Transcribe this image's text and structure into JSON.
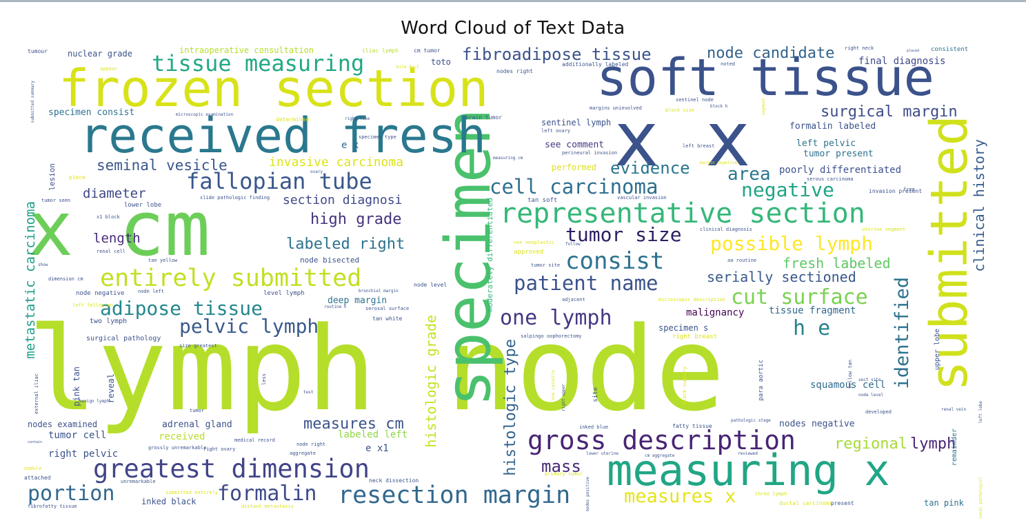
{
  "chart_data": {
    "type": "wordcloud",
    "title": "Word Cloud of Text Data",
    "background": "#ffffff",
    "colormap": "viridis",
    "words": [
      {
        "text": "lymph node",
        "weight": 1.0,
        "color": "#b5de2b"
      },
      {
        "text": "x cm",
        "weight": 0.62,
        "color": "#6cce59"
      },
      {
        "text": "specimen",
        "weight": 0.5,
        "color": "#4ac16d"
      },
      {
        "text": "frozen section",
        "weight": 0.45,
        "color": "#d8e219"
      },
      {
        "text": "soft tissue",
        "weight": 0.45,
        "color": "#3b528b"
      },
      {
        "text": "x x",
        "weight": 0.5,
        "color": "#3b528b"
      },
      {
        "text": "submitted",
        "weight": 0.42,
        "color": "#d0e11c"
      },
      {
        "text": "received fresh",
        "weight": 0.4,
        "color": "#2a788e"
      },
      {
        "text": "measuring x",
        "weight": 0.38,
        "color": "#21a685"
      },
      {
        "text": "representative section",
        "weight": 0.24,
        "color": "#35b779"
      },
      {
        "text": "gross description",
        "weight": 0.23,
        "color": "#482475"
      },
      {
        "text": "greatest dimension",
        "weight": 0.22,
        "color": "#414487"
      },
      {
        "text": "resection margin",
        "weight": 0.21,
        "color": "#31688e"
      },
      {
        "text": "entirely submitted",
        "weight": 0.21,
        "color": "#c2df23"
      },
      {
        "text": "consist",
        "weight": 0.2,
        "color": "#2c728e"
      },
      {
        "text": "fallopian tube",
        "weight": 0.19,
        "color": "#39568c"
      },
      {
        "text": "tissue measuring",
        "weight": 0.19,
        "color": "#22a884"
      },
      {
        "text": "one lymph",
        "weight": 0.18,
        "color": "#443a83"
      },
      {
        "text": "cell carcinoma",
        "weight": 0.17,
        "color": "#2e6f8e"
      },
      {
        "text": "formalin",
        "weight": 0.17,
        "color": "#3e4a89"
      },
      {
        "text": "portion",
        "weight": 0.17,
        "color": "#31688e"
      },
      {
        "text": "cut surface",
        "weight": 0.17,
        "color": "#7ad151"
      },
      {
        "text": "patient name",
        "weight": 0.17,
        "color": "#3b528b"
      },
      {
        "text": "tumor size",
        "weight": 0.16,
        "color": "#2d1e63"
      },
      {
        "text": "adipose tissue",
        "weight": 0.16,
        "color": "#24878e"
      },
      {
        "text": "pelvic lymph",
        "weight": 0.16,
        "color": "#38598c"
      },
      {
        "text": "possible lymph",
        "weight": 0.16,
        "color": "#fde725"
      },
      {
        "text": "fibroadipose tissue",
        "weight": 0.15,
        "color": "#3b528b"
      },
      {
        "text": "negative",
        "weight": 0.16,
        "color": "#20a386"
      },
      {
        "text": "area",
        "weight": 0.16,
        "color": "#2a788e"
      },
      {
        "text": "identified",
        "weight": 0.16,
        "color": "#2c728e"
      },
      {
        "text": "h e",
        "weight": 0.16,
        "color": "#26828e"
      },
      {
        "text": "measures x",
        "weight": 0.15,
        "color": "#e5e419"
      },
      {
        "text": "evidence",
        "weight": 0.14,
        "color": "#2b748e"
      },
      {
        "text": "node candidate",
        "weight": 0.13,
        "color": "#33638d"
      },
      {
        "text": "surgical margin",
        "weight": 0.13,
        "color": "#3e4c8a"
      },
      {
        "text": "histologic type",
        "weight": 0.13,
        "color": "#33638d"
      },
      {
        "text": "histologic grade",
        "weight": 0.12,
        "color": "#c8e020"
      },
      {
        "text": "seminal vesicle",
        "weight": 0.12,
        "color": "#39558c"
      },
      {
        "text": "high grade",
        "weight": 0.12,
        "color": "#46327e"
      },
      {
        "text": "labeled right",
        "weight": 0.12,
        "color": "#2c728e"
      },
      {
        "text": "serially sectioned",
        "weight": 0.12,
        "color": "#38588c"
      },
      {
        "text": "fresh labeled",
        "weight": 0.12,
        "color": "#5ec962"
      },
      {
        "text": "clinical history",
        "weight": 0.12,
        "color": "#365d8d"
      },
      {
        "text": "metastatic carcinoma",
        "weight": 0.12,
        "color": "#1fa088"
      },
      {
        "text": "measures cm",
        "weight": 0.11,
        "color": "#3b528b"
      },
      {
        "text": "mass",
        "weight": 0.11,
        "color": "#482878"
      },
      {
        "text": "regional",
        "weight": 0.11,
        "color": "#a5db36"
      },
      {
        "text": "lymph",
        "weight": 0.11,
        "color": "#482475"
      },
      {
        "text": "invasive carcinoma",
        "weight": 0.1,
        "color": "#dde318"
      },
      {
        "text": "section diagnosi",
        "weight": 0.1,
        "color": "#3e4989"
      },
      {
        "text": "diameter",
        "weight": 0.1,
        "color": "#3f4788"
      },
      {
        "text": "length",
        "weight": 0.1,
        "color": "#472c7a"
      },
      {
        "text": "malignancy",
        "weight": 0.08,
        "color": "#440154"
      },
      {
        "text": "tissue fragment",
        "weight": 0.08,
        "color": "#31688e"
      },
      {
        "text": "squamous cell",
        "weight": 0.08,
        "color": "#2f6c8e"
      },
      {
        "text": "poorly differentiated",
        "weight": 0.08,
        "color": "#3b528b"
      },
      {
        "text": "final diagnosis",
        "weight": 0.08,
        "color": "#3f4788"
      },
      {
        "text": "nuclear grade",
        "weight": 0.07,
        "color": "#3b528b"
      },
      {
        "text": "tumor cell",
        "weight": 0.07,
        "color": "#3b528b"
      },
      {
        "text": "right pelvic",
        "weight": 0.07,
        "color": "#3b528b"
      },
      {
        "text": "nodes examined",
        "weight": 0.07,
        "color": "#3b528b"
      },
      {
        "text": "adrenal gland",
        "weight": 0.07,
        "color": "#3b528b"
      },
      {
        "text": "deep margin",
        "weight": 0.07,
        "color": "#2c728e"
      },
      {
        "text": "left pelvic",
        "weight": 0.07,
        "color": "#2c728e"
      },
      {
        "text": "tumor present",
        "weight": 0.07,
        "color": "#2c728e"
      },
      {
        "text": "see comment",
        "weight": 0.07,
        "color": "#443a83"
      },
      {
        "text": "formalin labeled",
        "weight": 0.07,
        "color": "#3b528b"
      },
      {
        "text": "specimen consist",
        "weight": 0.07,
        "color": "#2c728e"
      },
      {
        "text": "nodes negative",
        "weight": 0.07,
        "color": "#3b528b"
      },
      {
        "text": "received",
        "weight": 0.07,
        "color": "#b5de2b"
      },
      {
        "text": "labeled left",
        "weight": 0.07,
        "color": "#8fd744"
      },
      {
        "text": "e x1",
        "weight": 0.07,
        "color": "#3b528b"
      },
      {
        "text": "e x",
        "weight": 0.07,
        "color": "#31688e"
      },
      {
        "text": "performed",
        "weight": 0.06,
        "color": "#dde318"
      },
      {
        "text": "toto",
        "weight": 0.06,
        "color": "#3b528b"
      },
      {
        "text": "intraoperative consultation",
        "weight": 0.06,
        "color": "#b5de2b"
      },
      {
        "text": "tan pink",
        "weight": 0.06,
        "color": "#2c728e"
      },
      {
        "text": "inked black",
        "weight": 0.06,
        "color": "#3b528b"
      },
      {
        "text": "node bisected",
        "weight": 0.05,
        "color": "#3b528b"
      },
      {
        "text": "surgical pathology",
        "weight": 0.05,
        "color": "#3b528b"
      },
      {
        "text": "two lymph",
        "weight": 0.05,
        "color": "#3b528b"
      },
      {
        "text": "reveal",
        "weight": 0.06,
        "color": "#3b528b"
      },
      {
        "text": "pink tan",
        "weight": 0.06,
        "color": "#3b528b"
      },
      {
        "text": "upper lobe",
        "weight": 0.05,
        "color": "#3b528b"
      },
      {
        "text": "remainder",
        "weight": 0.05,
        "color": "#2c728e"
      },
      {
        "text": "moderately differentiated",
        "weight": 0.05,
        "color": "#35b779"
      },
      {
        "text": "sentinel lymph",
        "weight": 0.05,
        "color": "#3b528b"
      },
      {
        "text": "specimen s",
        "weight": 0.05,
        "color": "#3b528b"
      },
      {
        "text": "lesion",
        "weight": 0.05,
        "color": "#3b528b"
      },
      {
        "text": "tumour",
        "weight": 0.04,
        "color": "#3b528b"
      },
      {
        "text": "iliac lymph",
        "weight": 0.04,
        "color": "#b5de2b"
      },
      {
        "text": "cm tumor",
        "weight": 0.04,
        "color": "#3b528b"
      },
      {
        "text": "nodes right",
        "weight": 0.04,
        "color": "#3b528b"
      },
      {
        "text": "additionally labeled",
        "weight": 0.04,
        "color": "#3b528b"
      },
      {
        "text": "consistent",
        "weight": 0.04,
        "color": "#2c728e"
      },
      {
        "text": "right neck",
        "weight": 0.04,
        "color": "#3b528b"
      },
      {
        "text": "appear",
        "weight": 0.04,
        "color": "#dde318"
      },
      {
        "text": "bile duct",
        "weight": 0.04,
        "color": "#dde318"
      },
      {
        "text": "noted",
        "weight": 0.04,
        "color": "#3b528b"
      },
      {
        "text": "determined",
        "weight": 0.04,
        "color": "#dde318"
      },
      {
        "text": "right lobe",
        "weight": 0.04,
        "color": "#3b528b"
      },
      {
        "text": "brain tumor",
        "weight": 0.04,
        "color": "#3b528b"
      },
      {
        "text": "block size",
        "weight": 0.04,
        "color": "#dde318"
      },
      {
        "text": "sentinel node",
        "weight": 0.04,
        "color": "#3b528b"
      },
      {
        "text": "left ovary",
        "weight": 0.04,
        "color": "#3b528b"
      },
      {
        "text": "perineural invasion",
        "weight": 0.04,
        "color": "#3b528b"
      },
      {
        "text": "left breast",
        "weight": 0.04,
        "color": "#3b528b"
      },
      {
        "text": "specimen type",
        "weight": 0.04,
        "color": "#3b528b"
      },
      {
        "text": "block h",
        "weight": 0.04,
        "color": "#3b528b"
      },
      {
        "text": "margins uninvolved",
        "weight": 0.04,
        "color": "#3b528b"
      },
      {
        "text": "piece",
        "weight": 0.04,
        "color": "#dde318"
      },
      {
        "text": "slide pathologic finding",
        "weight": 0.04,
        "color": "#3b528b"
      },
      {
        "text": "lower lobe",
        "weight": 0.04,
        "color": "#3b528b"
      },
      {
        "text": "tumor seen",
        "weight": 0.04,
        "color": "#3b528b"
      },
      {
        "text": "tan soft",
        "weight": 0.04,
        "color": "#3b528b"
      },
      {
        "text": "vascular invasion",
        "weight": 0.04,
        "color": "#3b528b"
      },
      {
        "text": "serous carcinoma",
        "weight": 0.04,
        "color": "#3b528b"
      },
      {
        "text": "invasion present",
        "weight": 0.04,
        "color": "#3b528b"
      },
      {
        "text": "free",
        "weight": 0.04,
        "color": "#3b528b"
      },
      {
        "text": "x1 block",
        "weight": 0.04,
        "color": "#3b528b"
      },
      {
        "text": "non neoplastic",
        "weight": 0.04,
        "color": "#dde318"
      },
      {
        "text": "approved",
        "weight": 0.04,
        "color": "#dde318"
      },
      {
        "text": "tumor site",
        "weight": 0.04,
        "color": "#3b528b"
      },
      {
        "text": "follow",
        "weight": 0.04,
        "color": "#3b528b"
      },
      {
        "text": "aa routine",
        "weight": 0.04,
        "color": "#3b528b"
      },
      {
        "text": "renal cell",
        "weight": 0.04,
        "color": "#3b528b"
      },
      {
        "text": "tan yellow",
        "weight": 0.04,
        "color": "#3b528b"
      },
      {
        "text": "show",
        "weight": 0.04,
        "color": "#3b528b"
      },
      {
        "text": "dimension cm",
        "weight": 0.04,
        "color": "#3b528b"
      },
      {
        "text": "node level",
        "weight": 0.04,
        "color": "#3b528b"
      },
      {
        "text": "node negative",
        "weight": 0.04,
        "color": "#3b528b"
      },
      {
        "text": "node left",
        "weight": 0.04,
        "color": "#3b528b"
      },
      {
        "text": "level lymph",
        "weight": 0.04,
        "color": "#3b528b"
      },
      {
        "text": "bronchial margin",
        "weight": 0.04,
        "color": "#3b528b"
      },
      {
        "text": "left fallopian",
        "weight": 0.04,
        "color": "#dde318"
      },
      {
        "text": "routine h",
        "weight": 0.04,
        "color": "#3b528b"
      },
      {
        "text": "serosal surface",
        "weight": 0.04,
        "color": "#3b528b"
      },
      {
        "text": "tan white",
        "weight": 0.04,
        "color": "#3b528b"
      },
      {
        "text": "adjacent",
        "weight": 0.04,
        "color": "#3b528b"
      },
      {
        "text": "microscopic description",
        "weight": 0.04,
        "color": "#dde318"
      },
      {
        "text": "size greatest",
        "weight": 0.04,
        "color": "#3b528b"
      },
      {
        "text": "salpingo oophorectomy",
        "weight": 0.04,
        "color": "#3b528b"
      },
      {
        "text": "right breast",
        "weight": 0.04,
        "color": "#dde318"
      },
      {
        "text": "external iliac",
        "weight": 0.04,
        "color": "#3b528b"
      },
      {
        "text": "benign lymph",
        "weight": 0.04,
        "color": "#3b528b"
      },
      {
        "text": "tumor",
        "weight": 0.04,
        "color": "#3b528b"
      },
      {
        "text": "medical record",
        "weight": 0.04,
        "color": "#3b528b"
      },
      {
        "text": "test",
        "weight": 0.04,
        "color": "#3b528b"
      },
      {
        "text": "less",
        "weight": 0.04,
        "color": "#3b528b"
      },
      {
        "text": "grossly unremarkable",
        "weight": 0.04,
        "color": "#3b528b"
      },
      {
        "text": "right ovary",
        "weight": 0.04,
        "color": "#3b528b"
      },
      {
        "text": "node right",
        "weight": 0.04,
        "color": "#3b528b"
      },
      {
        "text": "aggregate",
        "weight": 0.04,
        "color": "#3b528b"
      },
      {
        "text": "one cassette",
        "weight": 0.04,
        "color": "#dde318"
      },
      {
        "text": "right upper",
        "weight": 0.04,
        "color": "#3b528b"
      },
      {
        "text": "inked blue",
        "weight": 0.04,
        "color": "#3b528b"
      },
      {
        "text": "fatty tissue",
        "weight": 0.04,
        "color": "#3b528b"
      },
      {
        "text": "lower uterine",
        "weight": 0.04,
        "color": "#3b528b"
      },
      {
        "text": "cm aggregate",
        "weight": 0.04,
        "color": "#3b528b"
      },
      {
        "text": "reviewed",
        "weight": 0.04,
        "color": "#3b528b"
      },
      {
        "text": "pathologic stage",
        "weight": 0.04,
        "color": "#3b528b"
      },
      {
        "text": "block summary",
        "weight": 0.04,
        "color": "#dde318"
      },
      {
        "text": "sect site",
        "weight": 0.04,
        "color": "#3b528b"
      },
      {
        "text": "developed",
        "weight": 0.04,
        "color": "#3b528b"
      },
      {
        "text": "left lobe",
        "weight": 0.04,
        "color": "#3b528b"
      },
      {
        "text": "renal vein",
        "weight": 0.04,
        "color": "#3b528b"
      },
      {
        "text": "nodule",
        "weight": 0.04,
        "color": "#dde318"
      },
      {
        "text": "attached",
        "weight": 0.04,
        "color": "#3b528b"
      },
      {
        "text": "unremarkable",
        "weight": 0.04,
        "color": "#3b528b"
      },
      {
        "text": "submitted entirely",
        "weight": 0.04,
        "color": "#dde318"
      },
      {
        "text": "neck dissection",
        "weight": 0.04,
        "color": "#3b528b"
      },
      {
        "text": "primary tumor",
        "weight": 0.04,
        "color": "#dde318"
      },
      {
        "text": "three lymph",
        "weight": 0.04,
        "color": "#dde318"
      },
      {
        "text": "fibrofatty tissue",
        "weight": 0.04,
        "color": "#3b528b"
      },
      {
        "text": "distant metastasis",
        "weight": 0.04,
        "color": "#dde318"
      },
      {
        "text": "ductal carcinoma",
        "weight": 0.04,
        "color": "#dde318"
      },
      {
        "text": "present",
        "weight": 0.04,
        "color": "#3b528b"
      },
      {
        "text": "contain",
        "weight": 0.04,
        "color": "#3b528b"
      },
      {
        "text": "additional pathologist",
        "weight": 0.04,
        "color": "#dde318"
      },
      {
        "text": "nodes left",
        "weight": 0.04,
        "color": "#3b528b"
      },
      {
        "text": "submitted summary",
        "weight": 0.04,
        "color": "#3b528b"
      },
      {
        "text": "microscopic examination",
        "weight": 0.04,
        "color": "#3b528b"
      },
      {
        "text": "para aortic",
        "weight": 0.04,
        "color": "#3b528b"
      },
      {
        "text": "yellow tan",
        "weight": 0.05,
        "color": "#3b528b"
      },
      {
        "text": "site",
        "weight": 0.04,
        "color": "#3b528b"
      },
      {
        "text": "measuring cm",
        "weight": 0.05,
        "color": "#3b528b"
      },
      {
        "text": "margin negative",
        "weight": 0.04,
        "color": "#dde318"
      },
      {
        "text": "clinical diagnosis",
        "weight": 0.04,
        "color": "#3b528b"
      },
      {
        "text": "uterine segment",
        "weight": 0.04,
        "color": "#dde318"
      },
      {
        "text": "segment",
        "weight": 0.04,
        "color": "#dde318"
      },
      {
        "text": "ovary",
        "weight": 0.04,
        "color": "#3b528b"
      },
      {
        "text": "node level",
        "weight": 0.04,
        "color": "#3b528b"
      },
      {
        "text": "nodes positive",
        "weight": 0.04,
        "color": "#3b528b"
      },
      {
        "text": "placed",
        "weight": 0.04,
        "color": "#3b528b"
      },
      {
        "text": "cm",
        "weight": 0.04,
        "color": "#3b528b"
      }
    ]
  }
}
